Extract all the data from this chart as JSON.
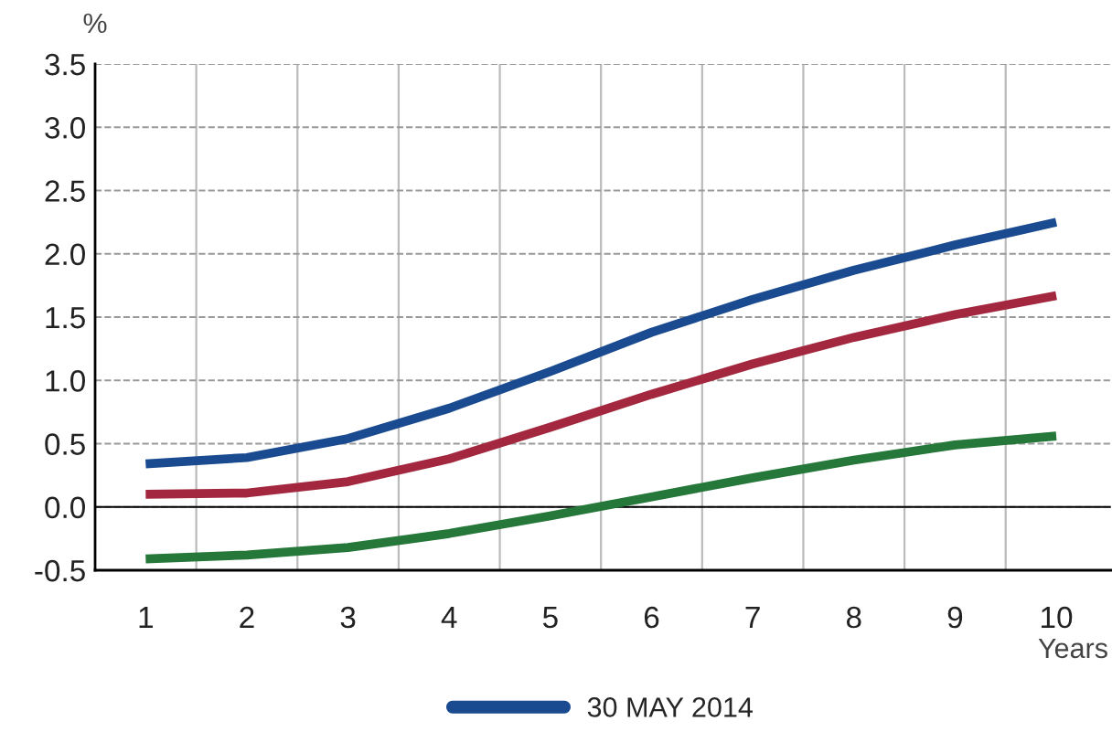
{
  "chart_data": {
    "type": "line",
    "ylabel": "%",
    "xlabel": "Years",
    "categories": [
      "1",
      "2",
      "3",
      "4",
      "5",
      "6",
      "7",
      "8",
      "9",
      "10"
    ],
    "series": [
      {
        "name": "30 MAY 2014",
        "color": "#1a4a8f",
        "values": [
          0.34,
          0.39,
          0.54,
          0.78,
          1.07,
          1.38,
          1.64,
          1.87,
          2.07,
          2.25
        ]
      },
      {
        "color": "#a3283f",
        "values": [
          0.1,
          0.11,
          0.2,
          0.38,
          0.63,
          0.89,
          1.13,
          1.34,
          1.52,
          1.67
        ]
      },
      {
        "color": "#26773a",
        "values": [
          -0.41,
          -0.38,
          -0.32,
          -0.21,
          -0.07,
          0.08,
          0.23,
          0.37,
          0.49,
          0.56
        ]
      }
    ],
    "ylim": [
      -0.5,
      3.5
    ],
    "yticks": [
      {
        "value": -0.5,
        "label": "-0.5"
      },
      {
        "value": 0,
        "label": "0.0"
      },
      {
        "value": 0.5,
        "label": "0.5"
      },
      {
        "value": 1,
        "label": "1.0"
      },
      {
        "value": 1.5,
        "label": "1.5"
      },
      {
        "value": 2,
        "label": "2.0"
      },
      {
        "value": 2.5,
        "label": "2.5"
      },
      {
        "value": 3,
        "label": "3.0"
      },
      {
        "value": 3.5,
        "label": "3.5"
      }
    ],
    "ref_lines": [
      {
        "axis": "y",
        "value": 0,
        "color": "#000000"
      }
    ],
    "grid": true,
    "legend": "bottom",
    "marker": "none",
    "line_style": "solid"
  }
}
